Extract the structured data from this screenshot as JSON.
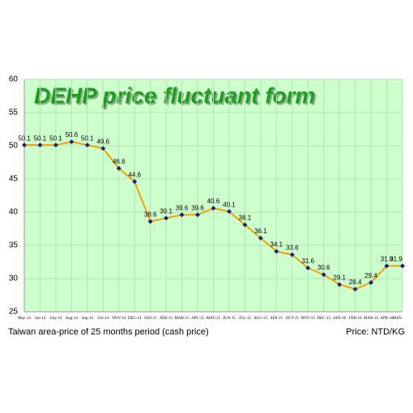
{
  "chart_data": {
    "type": "line",
    "title": "DEHP price fluctuant form",
    "caption": "Taiwan area-price of 25 months period (cash price)",
    "unit_note": "Price: NTD/KG",
    "categories": [
      "May-14",
      "Jun-14",
      "July-14",
      "Aug-14",
      "Sep-14",
      "Oct-14",
      "NOV-14",
      "DEC-14",
      "JAN-15",
      "FEB-15",
      "MAR-15",
      "APL-15",
      "MAY-15",
      "JUN-15",
      "JUL-15",
      "AUG-15",
      "SEP-15",
      "OCT-15",
      "NOV-15",
      "DEC-15",
      "JAN-16",
      "FEB-16",
      "MAR-16",
      "APR-16",
      "MAY-"
    ],
    "series": [
      {
        "color": "#f5a100",
        "marker_color": "#1a237e",
        "values": [
          50.1,
          50.1,
          50.1,
          50.6,
          50.1,
          49.6,
          46.6,
          44.6,
          38.6,
          39.1,
          39.6,
          39.6,
          40.6,
          40.1,
          38.1,
          36.1,
          34.1,
          33.6,
          31.6,
          30.6,
          29.1,
          28.4,
          29.4,
          31.9,
          31.9
        ]
      }
    ],
    "ylim": [
      25,
      60
    ],
    "yticks": [
      25,
      30,
      35,
      40,
      45,
      50,
      55,
      60
    ],
    "grid": true
  }
}
